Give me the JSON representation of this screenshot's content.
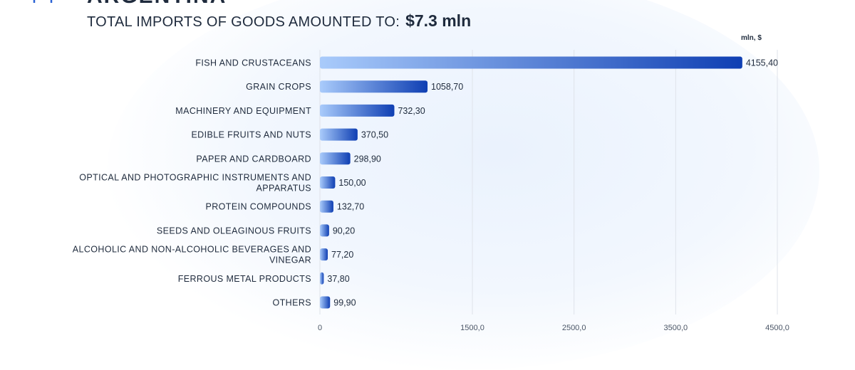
{
  "header": {
    "country": "ARGENTINA",
    "subtitle_prefix": "TOTAL IMPORTS OF GOODS AMOUNTED TO:",
    "subtitle_total": "$7.3 mln"
  },
  "colors": {
    "bar_start": "#a9cbfb",
    "bar_end": "#0f3fb3",
    "grid": "#dfe3ea",
    "text": "#1f2b3d"
  },
  "chart_data": {
    "type": "bar",
    "orientation": "horizontal",
    "unit_label": "mln, $",
    "categories": [
      "FISH AND CRUSTACEANS",
      "GRAIN CROPS",
      "MACHINERY AND EQUIPMENT",
      "EDIBLE FRUITS AND NUTS",
      "PAPER AND CARDBOARD",
      "OPTICAL AND PHOTOGRAPHIC INSTRUMENTS AND APPARATUS",
      "PROTEIN COMPOUNDS",
      "SEEDS AND OLEAGINOUS FRUITS",
      "ALCOHOLIC AND NON-ALCOHOLIC BEVERAGES AND VINEGAR",
      "FERROUS METAL PRODUCTS",
      "OTHERS"
    ],
    "category_lines": [
      [
        "FISH AND CRUSTACEANS"
      ],
      [
        "GRAIN CROPS"
      ],
      [
        "MACHINERY AND EQUIPMENT"
      ],
      [
        "EDIBLE FRUITS AND NUTS"
      ],
      [
        "PAPER AND CARDBOARD"
      ],
      [
        "OPTICAL AND PHOTOGRAPHIC INSTRUMENTS AND",
        "APPARATUS"
      ],
      [
        "PROTEIN COMPOUNDS"
      ],
      [
        "SEEDS AND OLEAGINOUS FRUITS"
      ],
      [
        "ALCOHOLIC AND NON-ALCOHOLIC BEVERAGES AND",
        "VINEGAR"
      ],
      [
        "FERROUS METAL PRODUCTS"
      ],
      [
        "OTHERS"
      ]
    ],
    "values": [
      4155.4,
      1058.7,
      732.3,
      370.5,
      298.9,
      150.0,
      132.7,
      90.2,
      77.2,
      37.8,
      99.9
    ],
    "value_labels": [
      "4155,40",
      "1058,70",
      "732,30",
      "370,50",
      "298,90",
      "150,00",
      "132,70",
      "90,20",
      "77,20",
      "37,80",
      "99,90"
    ],
    "x_ticks": [
      0,
      1500,
      2500,
      3500,
      4500
    ],
    "x_tick_labels": [
      "0",
      "1500,0",
      "2500,0",
      "3500,0",
      "4500,0"
    ],
    "xlim": [
      0,
      4500
    ],
    "grid": true
  }
}
